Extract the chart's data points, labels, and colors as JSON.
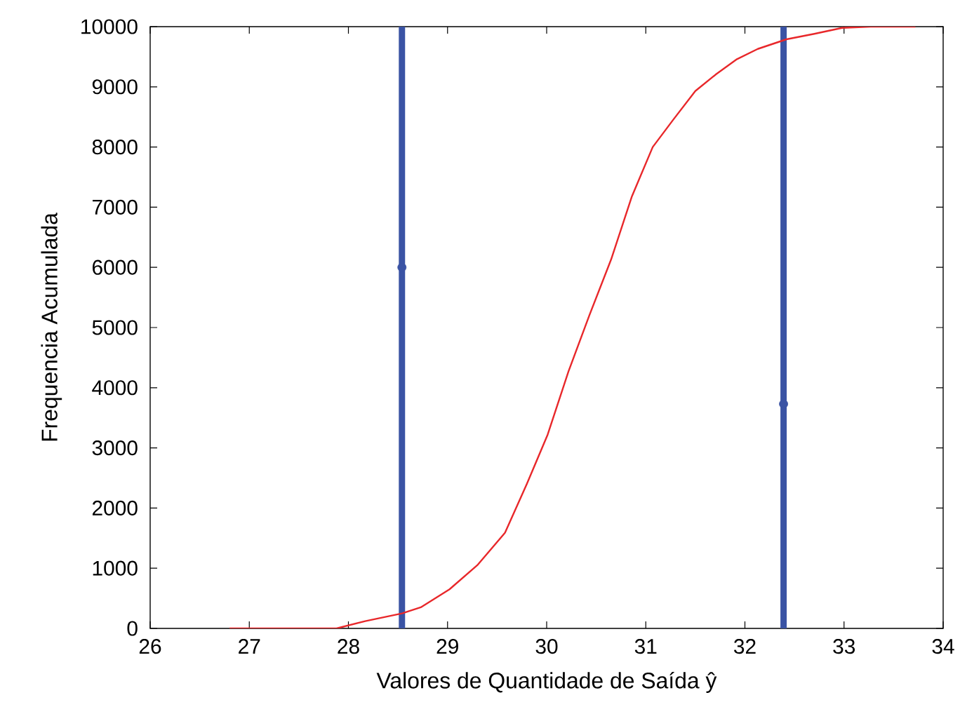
{
  "chart_data": {
    "type": "line",
    "xlabel": "Valores de Quantidade de Saída ŷ",
    "ylabel": "Frequencia Acumulada",
    "xlim": [
      26,
      34
    ],
    "xticks": [
      26,
      27,
      28,
      29,
      30,
      31,
      32,
      33,
      34
    ],
    "ylim": [
      0,
      10000
    ],
    "yticks": [
      0,
      1000,
      2000,
      3000,
      4000,
      5000,
      6000,
      7000,
      8000,
      9000,
      10000
    ],
    "grid": false,
    "series": [
      {
        "color": "#e8272a",
        "x": [
          26.8,
          27.88,
          28.17,
          28.54,
          28.73,
          29.02,
          29.3,
          29.58,
          29.8,
          30.01,
          30.22,
          30.43,
          30.65,
          30.86,
          31.07,
          31.28,
          31.5,
          31.71,
          31.92,
          32.13,
          32.42,
          32.7,
          32.98,
          33.27,
          33.72
        ],
        "values": [
          0,
          0,
          120,
          250,
          350,
          650,
          1050,
          1590,
          2400,
          3220,
          4270,
          5200,
          6130,
          7180,
          8000,
          8460,
          8930,
          9210,
          9460,
          9630,
          9790,
          9880,
          9980,
          10000,
          10000
        ]
      },
      {
        "type": "scatter",
        "color": "#3a53a4",
        "marker": "circle",
        "x": [
          28.54,
          32.39
        ],
        "values": [
          6000,
          3730
        ]
      }
    ],
    "ref_lines": [
      {
        "axis": "x",
        "value": 28.54,
        "color": "#3a53a4"
      },
      {
        "axis": "x",
        "value": 32.39,
        "color": "#3a53a4"
      }
    ]
  }
}
